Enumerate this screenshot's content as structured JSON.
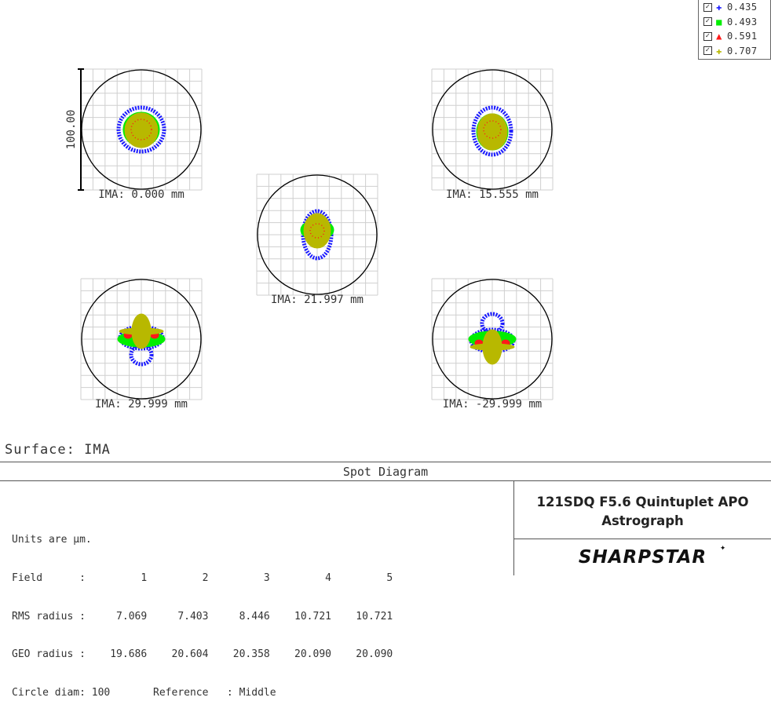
{
  "chart_data": {
    "type": "scatter",
    "title": "Spot Diagram",
    "surface_label": "Surface: IMA",
    "scale_bar_label": "100.00",
    "legend": [
      {
        "wavelength": "0.435",
        "color": "#1a1aff",
        "marker": "plus"
      },
      {
        "wavelength": "0.493",
        "color": "#00ee00",
        "marker": "square"
      },
      {
        "wavelength": "0.591",
        "color": "#ff1a1a",
        "marker": "triangle"
      },
      {
        "wavelength": "0.707",
        "color": "#b8b800",
        "marker": "plus"
      }
    ],
    "fields": [
      {
        "field": 1,
        "label": "IMA: 0.000 mm",
        "rms_radius": 7.069,
        "geo_radius": 19.686
      },
      {
        "field": 2,
        "label": "IMA: 15.555 mm",
        "rms_radius": 7.403,
        "geo_radius": 20.604
      },
      {
        "field": 3,
        "label": "IMA: 21.997 mm",
        "rms_radius": 8.446,
        "geo_radius": 20.358
      },
      {
        "field": 4,
        "label": "IMA: 29.999 mm",
        "rms_radius": 10.721,
        "geo_radius": 20.09
      },
      {
        "field": 5,
        "label": "IMA: -29.999 mm",
        "rms_radius": 10.721,
        "geo_radius": 20.09
      }
    ],
    "units": "µm",
    "circle_diam": 100,
    "reference": "Middle"
  },
  "info_lines": [
    "Units are µm.",
    "Field      :         1         2         3         4         5",
    "RMS radius :     7.069     7.403     8.446    10.721    10.721",
    "GEO radius :    19.686    20.604    20.358    20.090    20.090",
    "Circle diam: 100       Reference   : Middle"
  ],
  "brand": {
    "line1": "121SDQ F5.6 Quintuplet APO",
    "line2": "Astrograph",
    "logo": "SHARPSTAR"
  }
}
